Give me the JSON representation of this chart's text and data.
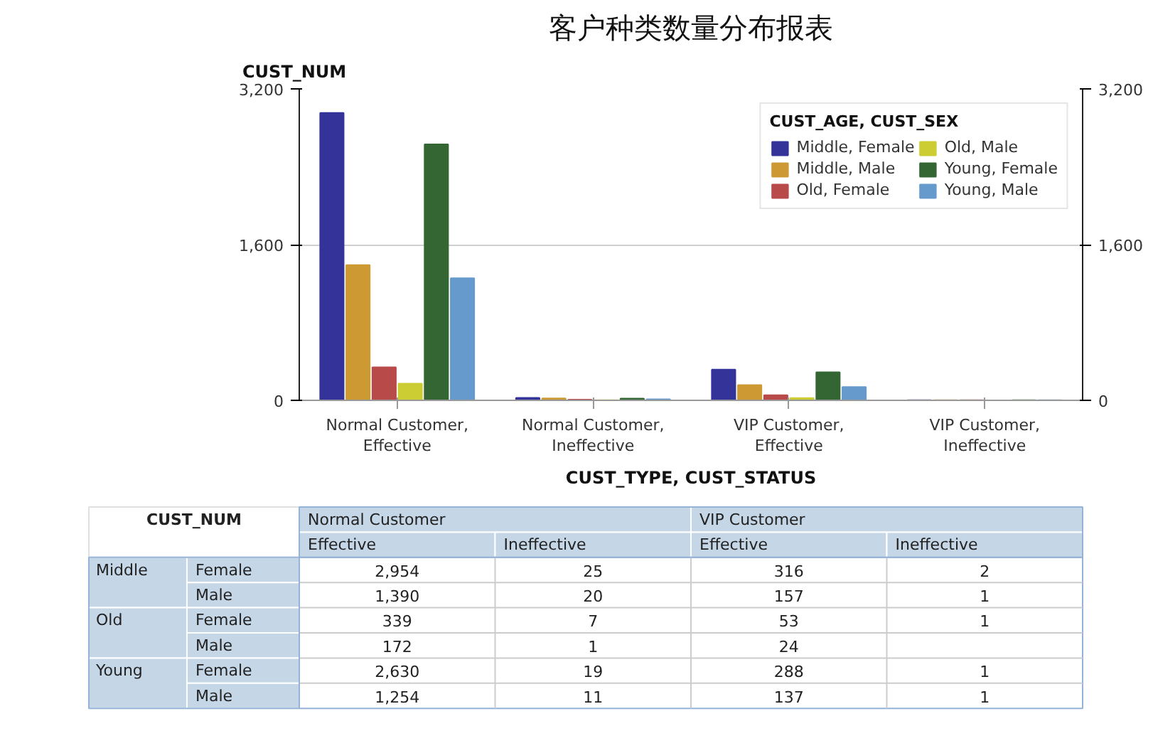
{
  "chart_data": {
    "type": "bar",
    "title": "客户种类数量分布报表",
    "xlabel": "CUST_TYPE, CUST_STATUS",
    "ylabel": "CUST_NUM",
    "legend_title": "CUST_AGE, CUST_SEX",
    "categories": [
      "Normal Customer, Effective",
      "Normal Customer, Ineffective",
      "VIP Customer, Effective",
      "VIP Customer, Ineffective"
    ],
    "series": [
      {
        "name": "Middle, Female",
        "color": "#333399",
        "values": [
          2954,
          25,
          316,
          2
        ],
        "value_labels": [
          "2,954",
          "25",
          "316",
          "2"
        ]
      },
      {
        "name": "Middle, Male",
        "color": "#cc9933",
        "values": [
          1390,
          20,
          157,
          1
        ],
        "value_labels": [
          "1,390",
          "20",
          "157",
          "1"
        ]
      },
      {
        "name": "Old, Female",
        "color": "#b94a4a",
        "values": [
          339,
          7,
          53,
          1
        ],
        "value_labels": [
          "339",
          "7",
          "53",
          "1"
        ]
      },
      {
        "name": "Old, Male",
        "color": "#cccc33",
        "values": [
          172,
          1,
          24,
          null
        ],
        "value_labels": [
          "172",
          "1",
          "24",
          null
        ]
      },
      {
        "name": "Young, Female",
        "color": "#336633",
        "values": [
          2630,
          19,
          288,
          1
        ],
        "value_labels": [
          "2,630",
          "19",
          "288",
          "1"
        ]
      },
      {
        "name": "Young, Male",
        "color": "#6699cc",
        "values": [
          1254,
          11,
          137,
          1
        ],
        "value_labels": [
          "1,254",
          "11",
          "137",
          "1"
        ]
      }
    ],
    "ylim": [
      0,
      3200
    ],
    "yticks": [
      0,
      {
        "value": 1600,
        "label": "1,600"
      },
      {
        "value": 3200,
        "label": "3,200"
      }
    ],
    "y2lim": [
      0,
      3200
    ],
    "y2ticks": [
      0,
      {
        "value": 1600,
        "label": "1,600"
      },
      {
        "value": 3200,
        "label": "3,200"
      }
    ],
    "grid": "y",
    "legend": "top right",
    "annotations": [
      "Normal Customer",
      "VIP Customer",
      "Effective",
      "Ineffective",
      "Effective",
      "Ineffective",
      "Middle",
      "Old",
      "Young",
      "Female",
      "Male",
      "Female",
      "Male",
      "Female",
      "Male"
    ]
  }
}
